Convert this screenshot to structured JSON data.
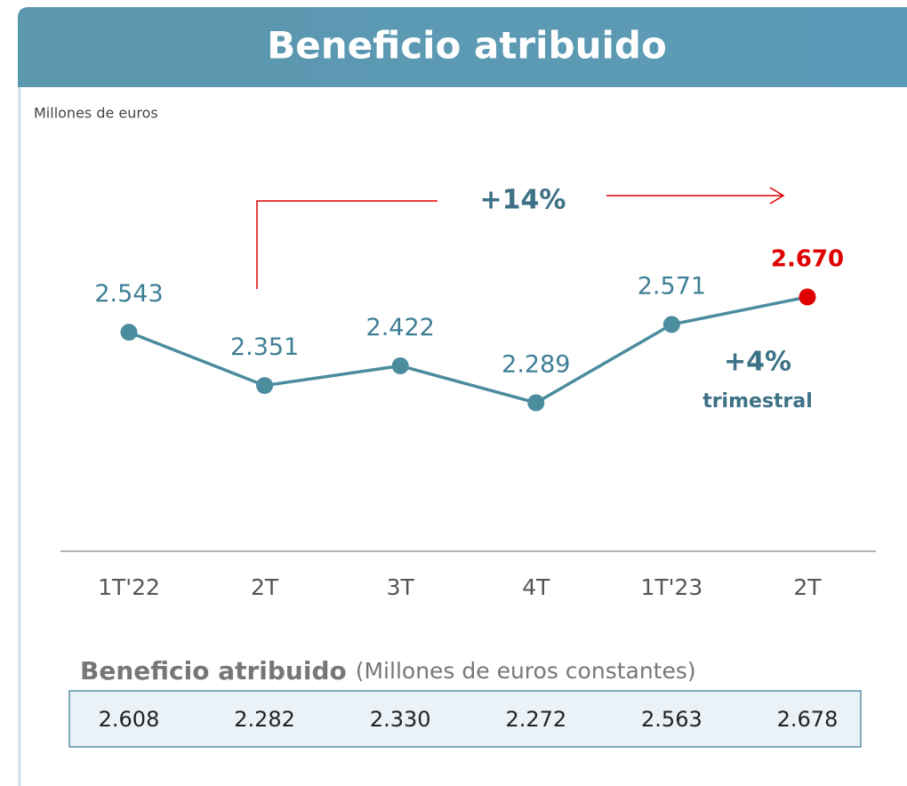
{
  "chart_data": {
    "type": "line",
    "title": "Beneficio atribuido",
    "subtitle": "Millones de euros",
    "categories": [
      "1T'22",
      "2T",
      "3T",
      "4T",
      "1T'23",
      "2T"
    ],
    "values": [
      2543,
      2351,
      2422,
      2289,
      2571,
      2670
    ],
    "value_labels": [
      "2.543",
      "2.351",
      "2.422",
      "2.289",
      "2.571",
      "2.670"
    ],
    "color": "#4b8c9e",
    "point_colors": [
      "#4b8c9e",
      "#4b8c9e",
      "#4b8c9e",
      "#4b8c9e",
      "#4b8c9e",
      "#e00000"
    ],
    "annotations": [
      "+14%",
      "+4%",
      "trimestral"
    ]
  },
  "table": {
    "title": "Beneficio atribuido",
    "subtitle": "(Millones de euros constantes)",
    "values": [
      "2.608",
      "2.282",
      "2.330",
      "2.272",
      "2.563",
      "2.678"
    ]
  }
}
